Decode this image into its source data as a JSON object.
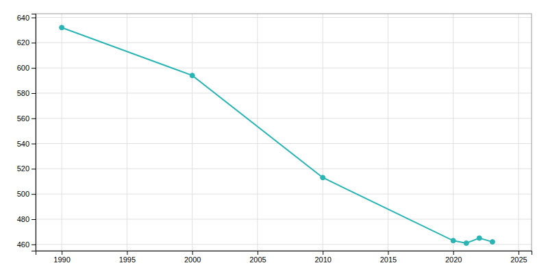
{
  "chart_data": {
    "type": "line",
    "x": [
      1990,
      2000,
      2010,
      2020,
      2021,
      2022,
      2023
    ],
    "values": [
      632,
      594,
      513,
      463,
      461,
      465,
      462
    ],
    "color": "#2ab5b5",
    "marker": "circle",
    "xlim": [
      1988,
      2026
    ],
    "xticks": [
      1990,
      1995,
      2000,
      2005,
      2010,
      2015,
      2020,
      2025
    ],
    "ylim": [
      455,
      643
    ],
    "yticks": [
      460,
      480,
      500,
      520,
      540,
      560,
      580,
      600,
      620,
      640
    ],
    "grid": true
  }
}
